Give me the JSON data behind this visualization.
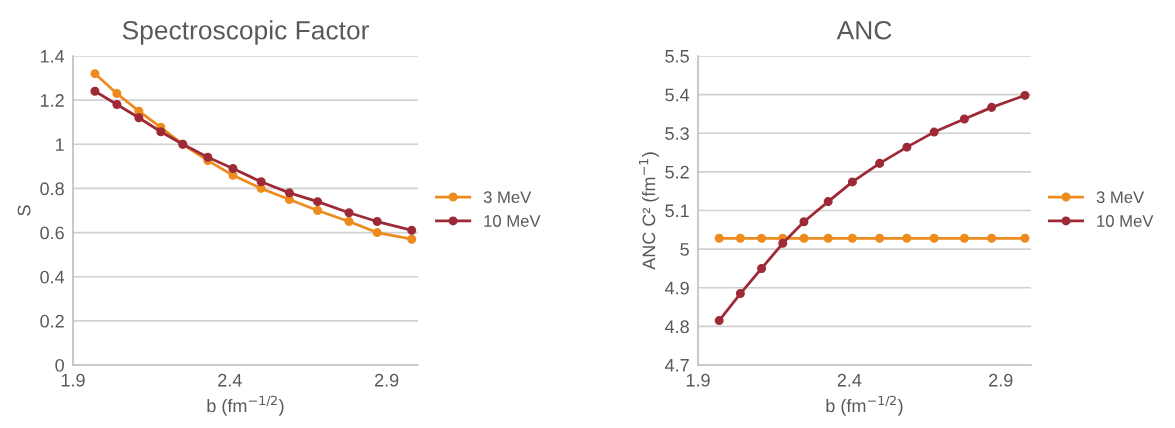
{
  "chart_data": [
    {
      "type": "line",
      "title": "Spectroscopic Factor",
      "xlabel": "b (fm$^{−1/2}$)",
      "ylabel": "S",
      "xlim": [
        1.9,
        3.0
      ],
      "xticks": [
        1.9,
        2.4,
        2.9
      ],
      "ylim": [
        0,
        1.4
      ],
      "yticks": [
        0,
        0.2,
        0.4,
        0.6,
        0.8,
        1,
        1.2,
        1.4
      ],
      "grid": "y",
      "legend": "right",
      "marker": "circle",
      "x": [
        1.97,
        2.04,
        2.11,
        2.18,
        2.25,
        2.33,
        2.41,
        2.5,
        2.59,
        2.68,
        2.78,
        2.87,
        2.98
      ],
      "series": [
        {
          "name": "3 MeV",
          "color": "#ed8b1e",
          "values": [
            1.32,
            1.23,
            1.15,
            1.077,
            1.0,
            0.926,
            0.86,
            0.8,
            0.75,
            0.7,
            0.65,
            0.6,
            0.57
          ]
        },
        {
          "name": "10 MeV",
          "color": "#9e2a37",
          "values": [
            1.24,
            1.18,
            1.12,
            1.057,
            1.0,
            0.941,
            0.89,
            0.83,
            0.78,
            0.74,
            0.69,
            0.65,
            0.61
          ]
        }
      ]
    },
    {
      "type": "line",
      "title": "ANC",
      "xlabel": "b (fm$^{−1/2}$)",
      "ylabel": "ANC C² (fm$^{−1}$)",
      "xlim": [
        1.9,
        3.0
      ],
      "xticks": [
        1.9,
        2.4,
        2.9
      ],
      "ylim": [
        4.7,
        5.5
      ],
      "yticks": [
        4.7,
        4.8,
        4.9,
        5,
        5.1,
        5.2,
        5.3,
        5.4,
        5.5
      ],
      "grid": "y",
      "legend": "right",
      "marker": "circle",
      "x": [
        1.97,
        2.04,
        2.11,
        2.18,
        2.25,
        2.33,
        2.41,
        2.5,
        2.59,
        2.68,
        2.78,
        2.87,
        2.98
      ],
      "series": [
        {
          "name": "3 MeV",
          "color": "#ed8b1e",
          "values": [
            5.028,
            5.028,
            5.028,
            5.028,
            5.028,
            5.028,
            5.028,
            5.028,
            5.028,
            5.028,
            5.028,
            5.028,
            5.028
          ]
        },
        {
          "name": "10 MeV",
          "color": "#9e2a37",
          "values": [
            4.815,
            4.885,
            4.95,
            5.015,
            5.071,
            5.123,
            5.174,
            5.222,
            5.264,
            5.303,
            5.337,
            5.367,
            5.398
          ]
        }
      ]
    }
  ]
}
